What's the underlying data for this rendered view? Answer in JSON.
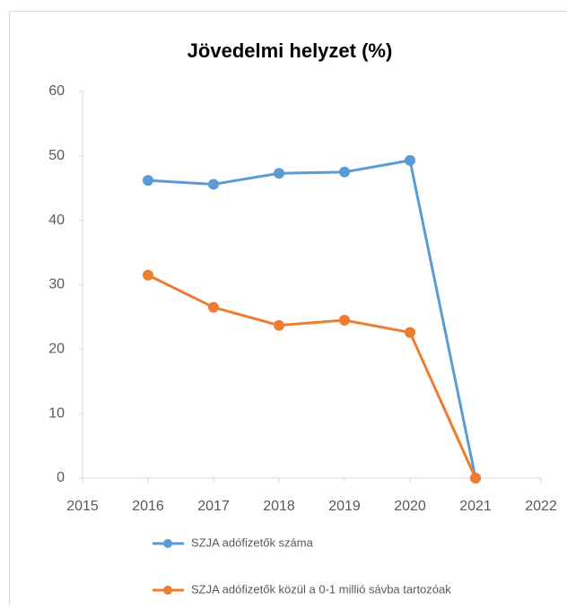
{
  "chart_data": {
    "type": "line",
    "title": "Jövedelmi helyzet (%)",
    "x": [
      2016,
      2017,
      2018,
      2019,
      2020,
      2021
    ],
    "series": [
      {
        "name": "SZJA adófizetők száma",
        "color": "#5b9bd5",
        "values": [
          46.2,
          45.6,
          47.3,
          47.5,
          49.3,
          0
        ]
      },
      {
        "name": "SZJA adófizetők közül a 0-1 millió sávba tartozóak",
        "color": "#ed7d31",
        "values": [
          31.5,
          26.5,
          23.7,
          24.5,
          22.6,
          0
        ]
      }
    ],
    "xlim": [
      2015,
      2022
    ],
    "xticks": [
      2015,
      2016,
      2017,
      2018,
      2019,
      2020,
      2021,
      2022
    ],
    "ylim": [
      0,
      60
    ],
    "yticks": [
      0,
      10,
      20,
      30,
      40,
      50,
      60
    ],
    "grid": false,
    "legend": "bottom"
  }
}
